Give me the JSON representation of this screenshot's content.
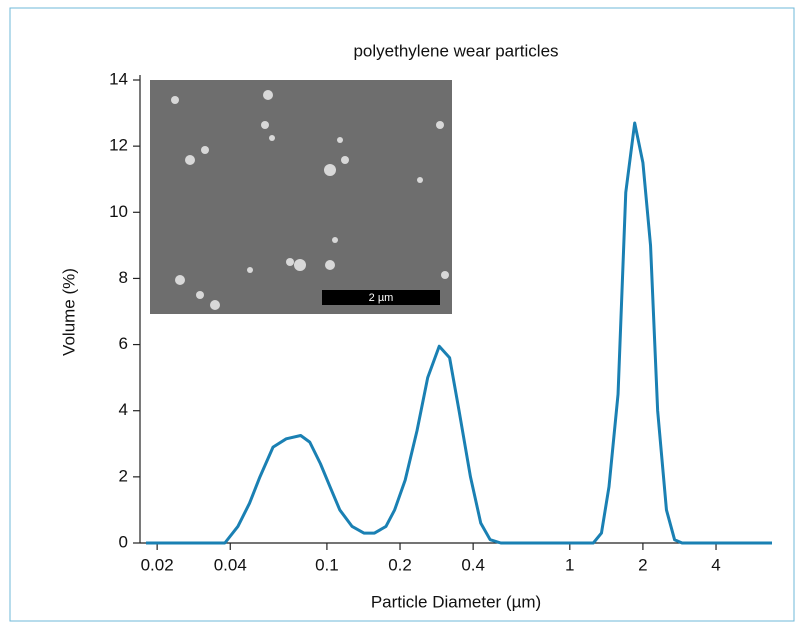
{
  "chart_data": {
    "type": "line",
    "title": "polyethylene wear particles",
    "x_label": "Particle Diameter (µm)",
    "y_label": "Volume (%)",
    "inset_label": "2 µm",
    "x": [
      0.018,
      0.038,
      0.043,
      0.048,
      0.053,
      0.06,
      0.068,
      0.078,
      0.085,
      0.094,
      0.103,
      0.113,
      0.127,
      0.142,
      0.157,
      0.175,
      0.19,
      0.21,
      0.235,
      0.26,
      0.29,
      0.32,
      0.35,
      0.39,
      0.43,
      0.47,
      0.52,
      1.25,
      1.35,
      1.45,
      1.58,
      1.7,
      1.85,
      2.0,
      2.15,
      2.3,
      2.5,
      2.7,
      2.9,
      6.8
    ],
    "values": [
      0,
      0,
      0.5,
      1.2,
      2.0,
      2.9,
      3.15,
      3.25,
      3.05,
      2.4,
      1.7,
      1.0,
      0.5,
      0.3,
      0.3,
      0.5,
      1.0,
      1.9,
      3.4,
      5.0,
      5.95,
      5.6,
      4.0,
      2.0,
      0.6,
      0.1,
      0,
      0,
      0.3,
      1.7,
      4.5,
      10.6,
      12.7,
      11.5,
      9.0,
      4.0,
      1.0,
      0.1,
      0,
      0
    ],
    "color": "#1a80b3",
    "xscale": "log",
    "xlim": [
      0.017,
      6.8
    ],
    "ylim": [
      0,
      14
    ],
    "xticks": [
      0.02,
      0.04,
      0.1,
      0.2,
      0.4,
      1,
      2,
      4
    ],
    "yticks": [
      0,
      2,
      4,
      6,
      8,
      10,
      12,
      14
    ],
    "grid": false
  }
}
